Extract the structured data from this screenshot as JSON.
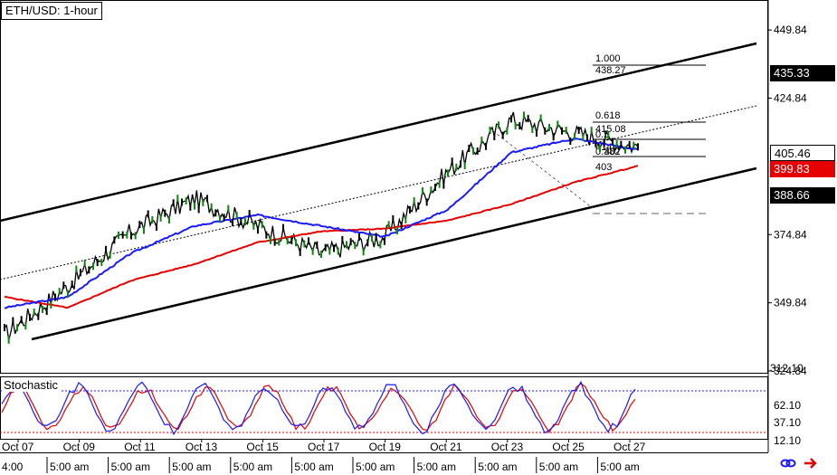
{
  "chart_title": "ETH/USD: 1-hour",
  "price_axis": {
    "labels": [
      "449.84",
      "424.84",
      "374.84",
      "349.84",
      "324.84"
    ],
    "tags": [
      {
        "value": "435.33",
        "style": "dark"
      },
      {
        "value": "405.46",
        "style": "white"
      },
      {
        "value": "399.83",
        "style": "red"
      },
      {
        "value": "388.66",
        "style": "dark"
      }
    ],
    "overlap_label": "312.10"
  },
  "fib_levels": [
    {
      "ratio": "1.000",
      "price": "438.27"
    },
    {
      "ratio": "0.618",
      "price": "415.08"
    },
    {
      "ratio": "0.5",
      "price": "414"
    },
    {
      "ratio": "0.382",
      "price": "407"
    },
    {
      "ratio": "0",
      "price": "403"
    }
  ],
  "stochastic": {
    "title": "Stochastic",
    "levels": [
      "62.10",
      "37.10",
      "12.10"
    ]
  },
  "time_axis": {
    "dates": [
      "Oct 07",
      "Oct 09",
      "Oct 11",
      "Oct 13",
      "Oct 15",
      "Oct 17",
      "Oct 19",
      "Oct 21",
      "Oct 23",
      "Oct 25",
      "Oct 27"
    ],
    "times": [
      "4:00",
      "5:00 am",
      "5:00 am",
      "5:00 am",
      "5:00 am",
      "5:00 am",
      "5:00 am",
      "5:00 am",
      "5:00 am",
      "5:00 am",
      "5:00 am"
    ]
  },
  "chart_data": {
    "type": "line",
    "title": "ETH/USD: 1-hour",
    "y_range": [
      324.84,
      459.84
    ],
    "x": [
      "Oct 07",
      "Oct 09",
      "Oct 11",
      "Oct 13",
      "Oct 15",
      "Oct 17",
      "Oct 19",
      "Oct 21",
      "Oct 23",
      "Oct 25",
      "Oct 27"
    ],
    "series": [
      {
        "name": "price",
        "values": [
          338,
          356,
          376,
          388,
          378,
          368,
          374,
          398,
          417,
          412,
          407
        ]
      },
      {
        "name": "ma-blue",
        "values": [
          348,
          352,
          368,
          378,
          382,
          378,
          374,
          384,
          405,
          410,
          406
        ]
      },
      {
        "name": "ma-red",
        "values": [
          352,
          348,
          358,
          364,
          372,
          376,
          377,
          380,
          386,
          394,
          400
        ]
      }
    ],
    "colors": {
      "price": "#000000",
      "ma_blue": "#1a1aff",
      "ma_red": "#e60000",
      "stoch_k": "#1a1aff",
      "stoch_d": "#e60000"
    }
  }
}
